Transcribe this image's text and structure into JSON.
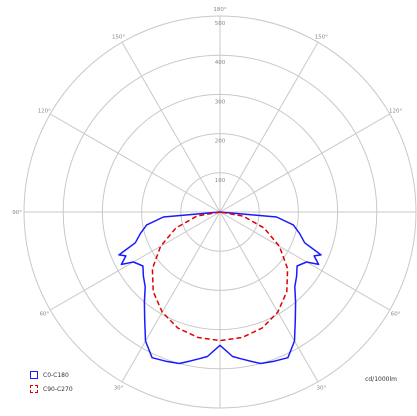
{
  "chart_data": {
    "type": "polar",
    "unit_label": "cd/1000lm",
    "angle_labels": [
      {
        "deg": 180,
        "text": "180°"
      },
      {
        "deg": 150,
        "text": "150°"
      },
      {
        "deg": -150,
        "text": "150°"
      },
      {
        "deg": 120,
        "text": "120°"
      },
      {
        "deg": -120,
        "text": "120°"
      },
      {
        "deg": 90,
        "text": "90°"
      },
      {
        "deg": -90,
        "text": "90°"
      },
      {
        "deg": 60,
        "text": "60°"
      },
      {
        "deg": -60,
        "text": "60°"
      },
      {
        "deg": 30,
        "text": "30°"
      },
      {
        "deg": -30,
        "text": "30°"
      }
    ],
    "radial_labels": [
      {
        "value": 100,
        "text": "100"
      },
      {
        "value": 200,
        "text": "200"
      },
      {
        "value": 300,
        "text": "300"
      },
      {
        "value": 400,
        "text": "400"
      },
      {
        "value": 500,
        "text": "500"
      }
    ],
    "rmax": 500,
    "series": [
      {
        "name": "C0-C180",
        "color": "#1a1aff",
        "dash": "",
        "points": [
          [
            -90,
            0
          ],
          [
            -85,
            145
          ],
          [
            -80,
            190
          ],
          [
            -75,
            210
          ],
          [
            -70,
            230
          ],
          [
            -67,
            280
          ],
          [
            -65,
            265
          ],
          [
            -62,
            285
          ],
          [
            -60,
            255
          ],
          [
            -55,
            240
          ],
          [
            -50,
            255
          ],
          [
            -45,
            270
          ],
          [
            -40,
            300
          ],
          [
            -35,
            335
          ],
          [
            -30,
            380
          ],
          [
            -25,
            410
          ],
          [
            -20,
            405
          ],
          [
            -15,
            400
          ],
          [
            -12,
            390
          ],
          [
            -8,
            378
          ],
          [
            -5,
            370
          ],
          [
            0,
            340
          ],
          [
            5,
            370
          ],
          [
            8,
            378
          ],
          [
            12,
            390
          ],
          [
            15,
            400
          ],
          [
            20,
            405
          ],
          [
            25,
            410
          ],
          [
            30,
            380
          ],
          [
            35,
            335
          ],
          [
            40,
            300
          ],
          [
            45,
            270
          ],
          [
            50,
            255
          ],
          [
            55,
            240
          ],
          [
            60,
            255
          ],
          [
            62,
            285
          ],
          [
            65,
            265
          ],
          [
            67,
            280
          ],
          [
            70,
            230
          ],
          [
            75,
            210
          ],
          [
            80,
            190
          ],
          [
            85,
            145
          ],
          [
            90,
            0
          ]
        ]
      },
      {
        "name": "C90-C270",
        "color": "#e00000",
        "dash": "5,3",
        "points": [
          [
            -90,
            0
          ],
          [
            -80,
            60
          ],
          [
            -70,
            120
          ],
          [
            -60,
            175
          ],
          [
            -50,
            225
          ],
          [
            -40,
            265
          ],
          [
            -30,
            295
          ],
          [
            -20,
            315
          ],
          [
            -10,
            325
          ],
          [
            0,
            328
          ],
          [
            10,
            325
          ],
          [
            20,
            315
          ],
          [
            30,
            295
          ],
          [
            40,
            265
          ],
          [
            50,
            225
          ],
          [
            60,
            175
          ],
          [
            70,
            120
          ],
          [
            80,
            60
          ],
          [
            90,
            0
          ]
        ]
      }
    ]
  }
}
